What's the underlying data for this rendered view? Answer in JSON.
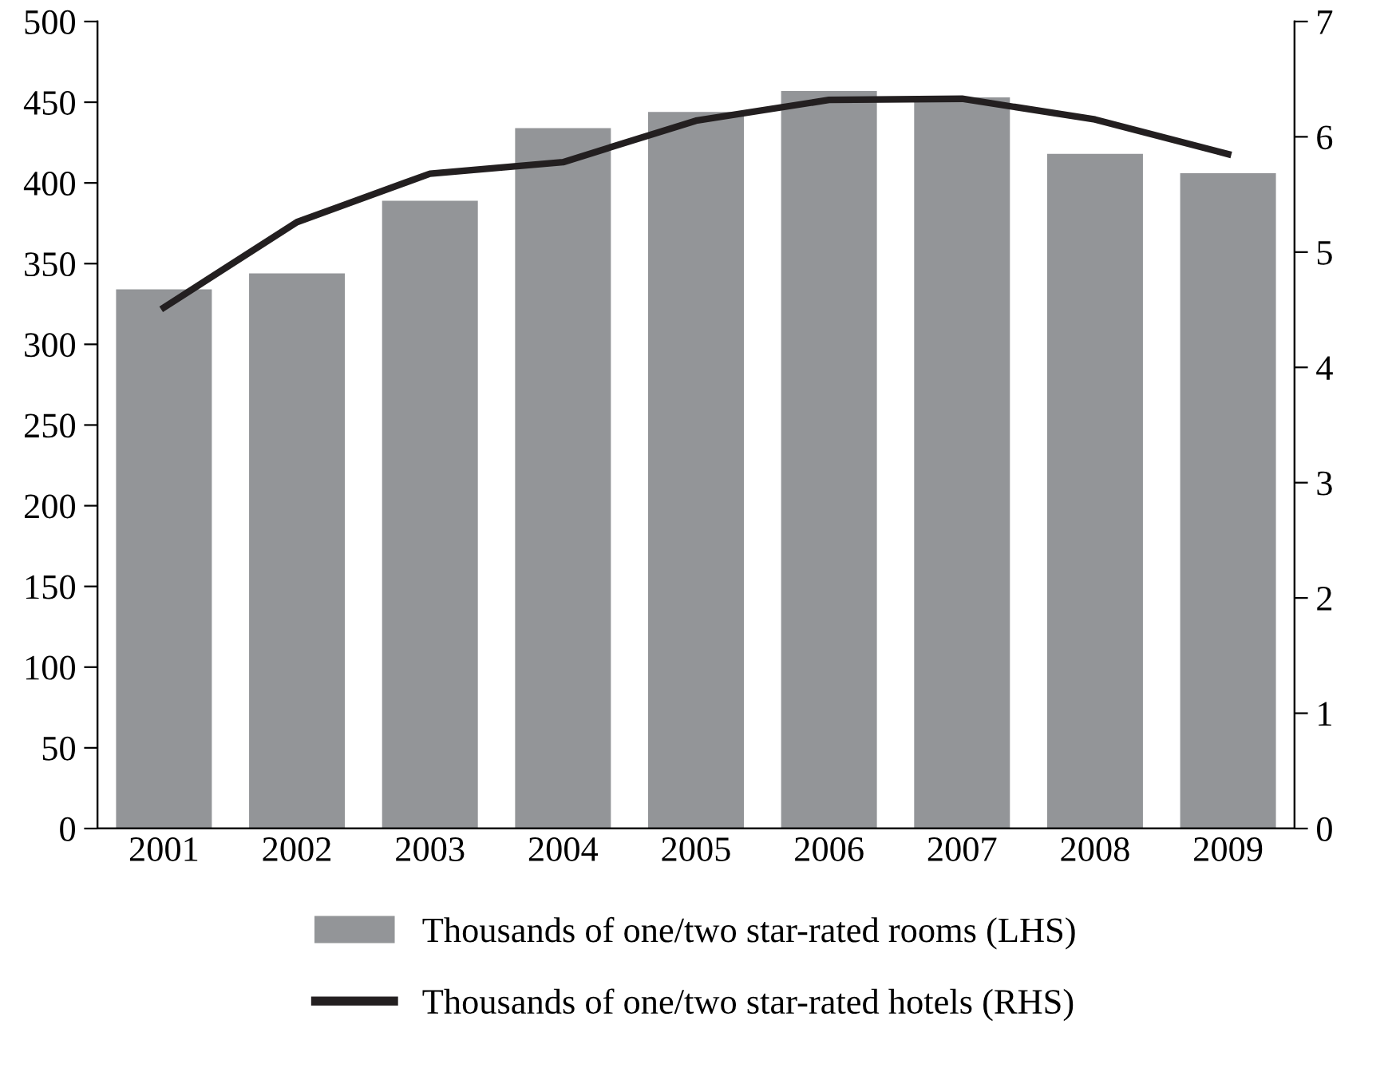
{
  "chart_data": {
    "type": "bar",
    "categories": [
      "2001",
      "2002",
      "2003",
      "2004",
      "2005",
      "2006",
      "2007",
      "2008",
      "2009"
    ],
    "series": [
      {
        "name": "Thousands of one/two star-rated rooms (LHS)",
        "color": "#939598",
        "values": [
          334,
          344,
          389,
          434,
          444,
          457,
          453,
          418,
          406
        ]
      },
      {
        "name": "Thousands of one/two star-rated hotels (RHS)",
        "type": "line",
        "axis": "y2",
        "color": "#231f20",
        "values": [
          4.52,
          5.26,
          5.68,
          5.78,
          6.14,
          6.32,
          6.33,
          6.15,
          5.85
        ]
      }
    ],
    "ylim": [
      0,
      500
    ],
    "yticks": [
      0,
      50,
      100,
      150,
      200,
      250,
      300,
      350,
      400,
      450,
      500
    ],
    "y2lim": [
      0,
      7
    ],
    "y2ticks": [
      0,
      1,
      2,
      3,
      4,
      5,
      6,
      7
    ],
    "grid": false,
    "legend": "bottom",
    "marker": "none",
    "line_style": "solid"
  }
}
